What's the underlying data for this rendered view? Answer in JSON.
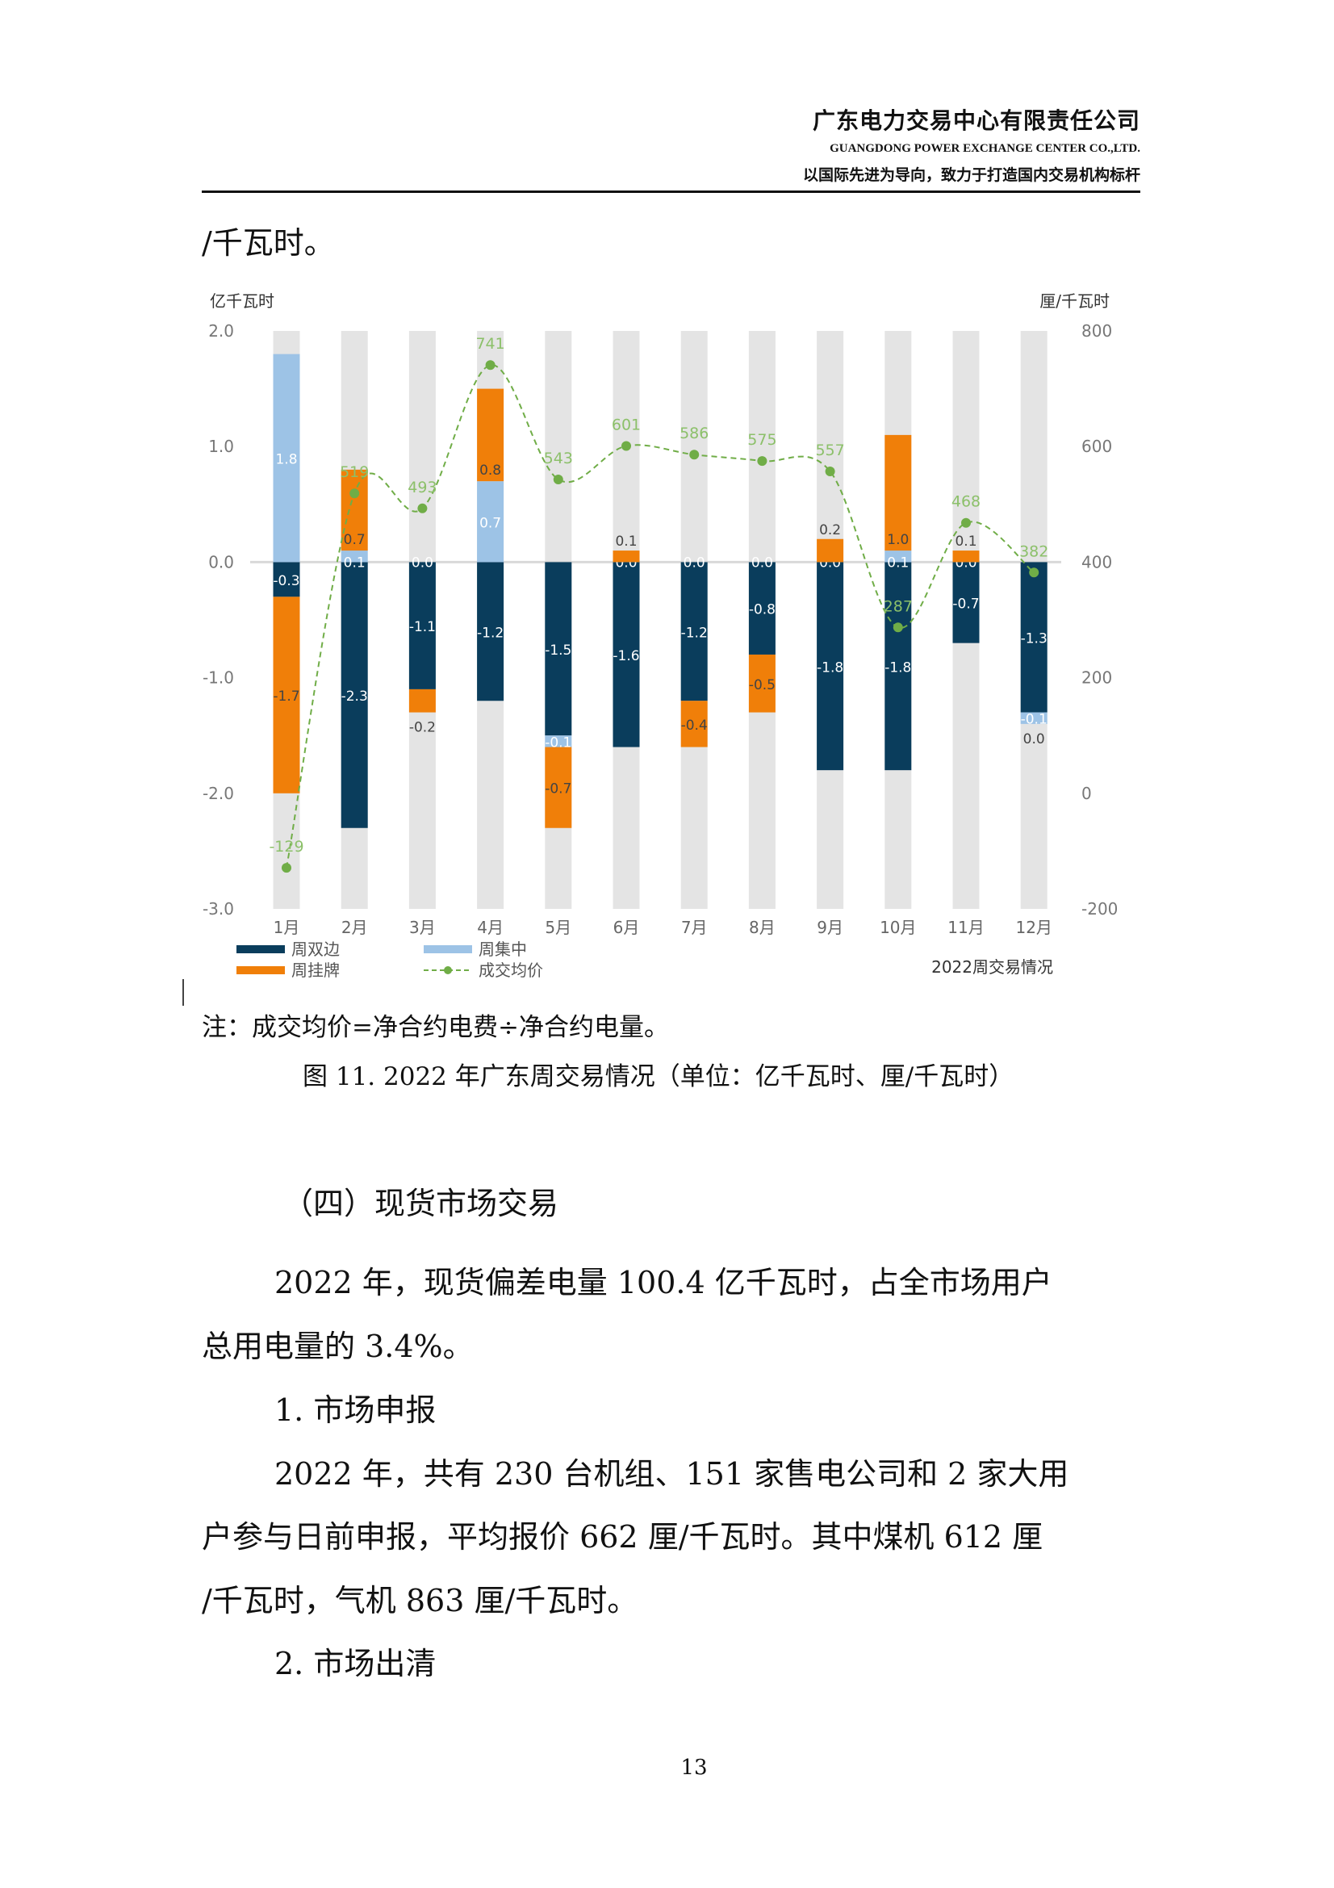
{
  "header": {
    "company_cn": "广东电力交易中心有限责任公司",
    "company_en": "GUANGDONG POWER EXCHANGE CENTER CO.,LTD.",
    "slogan": "以国际先进为导向，致力于打造国内交易机构标杆"
  },
  "body": {
    "continuation": "/千瓦时。",
    "note": "注：成交均价=净合约电费÷净合约电量。",
    "caption": "图 11. 2022 年广东周交易情况（单位：亿千瓦时、厘/千瓦时）",
    "section_heading": "（四）现货市场交易",
    "para1_line1": "2022 年，现货偏差电量 100.4 亿千瓦时，占全市场用户",
    "para1_line2": "总用电量的 3.4%。",
    "sub1": "1.  市场申报",
    "para2_line1": "2022 年，共有 230 台机组、151 家售电公司和 2 家大用",
    "para2_line2": "户参与日前申报，平均报价 662 厘/千瓦时。其中煤机 612 厘",
    "para2_line3": "/千瓦时，气机 863 厘/千瓦时。",
    "sub2": "2.  市场出清",
    "page_number": "13"
  },
  "chart_data": {
    "type": "bar",
    "title": "2022周交易情况",
    "ylabel": "亿千瓦时",
    "y2label": "厘/千瓦时",
    "ylim": [
      -3.0,
      2.0
    ],
    "y2lim": [
      -200,
      800
    ],
    "yticks": [
      "2.0",
      "1.0",
      "0.0",
      "-1.0",
      "-2.0",
      "-3.0"
    ],
    "y2ticks": [
      "800",
      "600",
      "400",
      "200",
      "0",
      "-200"
    ],
    "categories": [
      "1月",
      "2月",
      "3月",
      "4月",
      "5月",
      "6月",
      "7月",
      "8月",
      "9月",
      "10月",
      "11月",
      "12月"
    ],
    "legend": "bottom",
    "series": [
      {
        "name": "周双边",
        "color": "#0a3d5c",
        "values": [
          -0.3,
          -2.3,
          -1.1,
          -1.2,
          -1.5,
          -1.6,
          -1.2,
          -0.8,
          -1.8,
          -1.8,
          -0.7,
          -1.3
        ]
      },
      {
        "name": "周集中",
        "color": "#9dc3e6",
        "values": [
          1.8,
          0.1,
          0.0,
          0.7,
          -0.1,
          0.0,
          0.0,
          0.0,
          0.0,
          0.1,
          0.0,
          -0.1
        ]
      },
      {
        "name": "周挂牌",
        "color": "#f07f09",
        "values": [
          -1.7,
          0.7,
          -0.2,
          0.8,
          -0.7,
          0.1,
          -0.4,
          -0.5,
          0.2,
          1.0,
          0.1,
          0.0
        ]
      },
      {
        "name": "成交均价",
        "color": "#70ad47",
        "axis": "right",
        "type": "line",
        "values": [
          -129,
          519,
          493,
          741,
          543,
          601,
          586,
          575,
          557,
          287,
          468,
          382
        ]
      }
    ]
  }
}
